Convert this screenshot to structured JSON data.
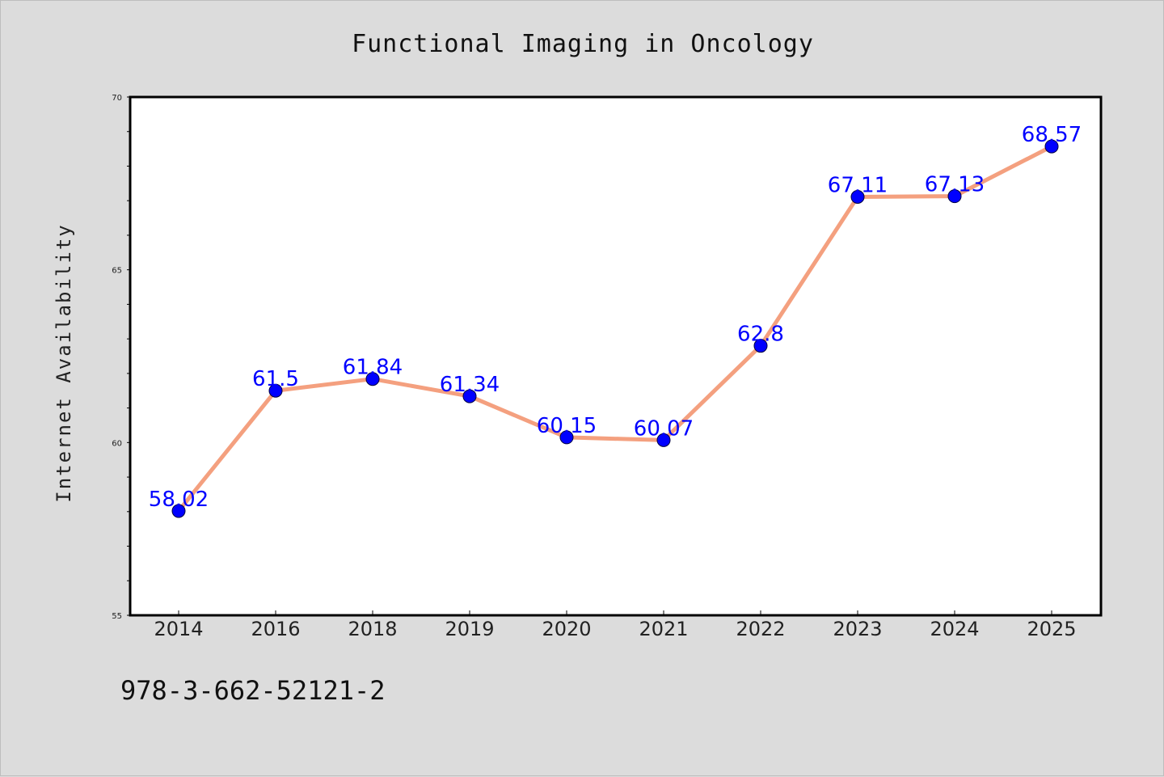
{
  "chart_data": {
    "type": "line",
    "title": "Functional Imaging in Oncology",
    "ylabel": "Internet Availability",
    "xlabel": "",
    "categories": [
      "2014",
      "2016",
      "2018",
      "2019",
      "2020",
      "2021",
      "2022",
      "2023",
      "2024",
      "2025"
    ],
    "series": [
      {
        "values": [
          58.02,
          61.5,
          61.84,
          61.34,
          60.15,
          60.07,
          62.8,
          67.11,
          67.13,
          68.57
        ]
      }
    ],
    "data_labels": [
      "58.02",
      "61.5",
      "61.84",
      "61.34",
      "60.15",
      "60.07",
      "62.8",
      "67.11",
      "67.13",
      "68.57"
    ],
    "ylim": [
      55,
      70
    ],
    "yticks": [
      55,
      60,
      65,
      70
    ],
    "ytick_labels": [
      "55",
      "60",
      "65",
      "70"
    ],
    "grid": false,
    "colors": {
      "line": "#f4a07f",
      "marker": "#0000ff",
      "label": "#0000ff",
      "background": "#dcdcdc",
      "plot_background": "#ffffff"
    }
  },
  "footer": {
    "code": "978-3-662-52121-2"
  }
}
